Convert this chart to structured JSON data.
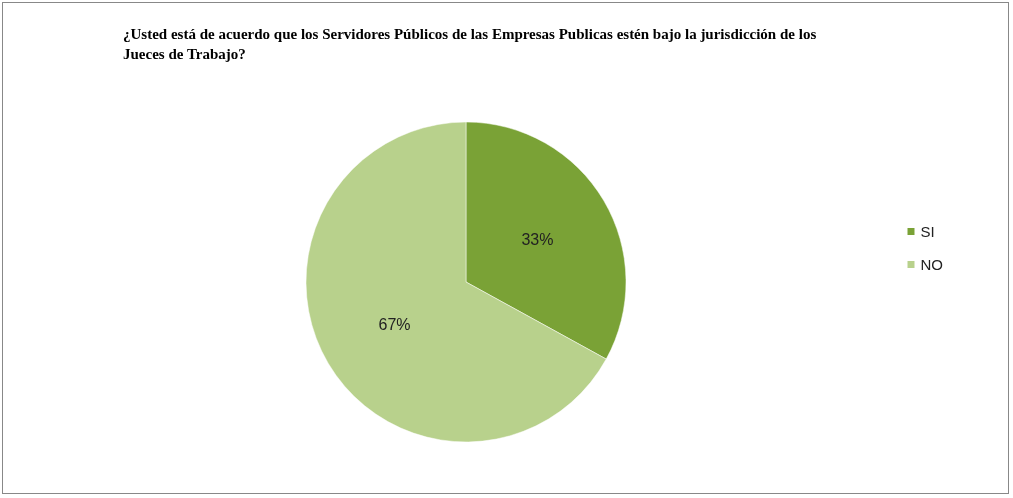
{
  "chart_data": {
    "type": "pie",
    "title": "¿Usted está de acuerdo que los Servidores Públicos de las Empresas Publicas estén bajo la jurisdicción de los Jueces de Trabajo?",
    "categories": [
      "SI",
      "NO"
    ],
    "values": [
      33,
      67
    ],
    "value_labels": [
      "33%",
      "67%"
    ],
    "colors": [
      "#7aa236",
      "#b8d18c"
    ],
    "legend": "right"
  }
}
